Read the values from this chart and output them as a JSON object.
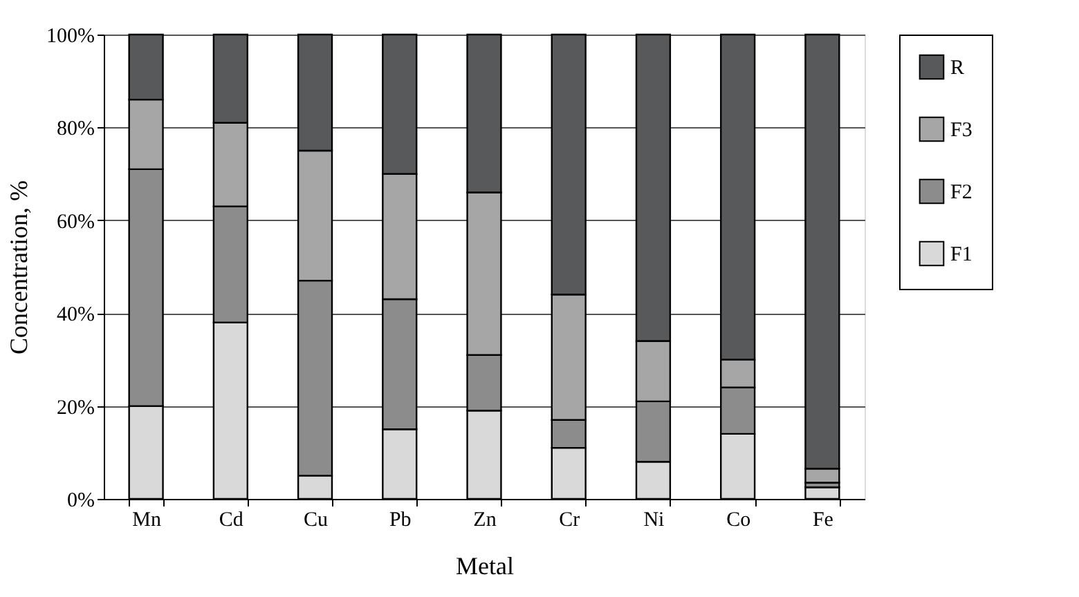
{
  "chart_data": {
    "type": "bar",
    "stacked": true,
    "xlabel": "Metal",
    "ylabel": "Concentration, %",
    "categories": [
      "Mn",
      "Cd",
      "Cu",
      "Pb",
      "Zn",
      "Cr",
      "Ni",
      "Co",
      "Fe"
    ],
    "series": [
      {
        "name": "F1",
        "color": "#d9d9d9",
        "values": [
          20,
          38,
          5,
          15,
          19,
          11,
          8,
          14,
          2.5
        ]
      },
      {
        "name": "F2",
        "color": "#8c8c8c",
        "values": [
          51,
          25,
          42,
          28,
          12,
          6,
          13,
          10,
          1
        ]
      },
      {
        "name": "F3",
        "color": "#a6a6a6",
        "values": [
          15,
          18,
          28,
          27,
          35,
          27,
          13,
          6,
          3
        ]
      },
      {
        "name": "R",
        "color": "#58595b",
        "values": [
          14,
          19,
          25,
          30,
          34,
          56,
          66,
          70,
          93.5
        ]
      }
    ],
    "ylim": [
      0,
      100
    ],
    "yticks": [
      {
        "value": 0,
        "label": "0%"
      },
      {
        "value": 20,
        "label": "20%"
      },
      {
        "value": 40,
        "label": "40%"
      },
      {
        "value": 60,
        "label": "60%"
      },
      {
        "value": 80,
        "label": "80%"
      },
      {
        "value": 100,
        "label": "100%"
      }
    ],
    "grid": "y",
    "legend": "right"
  }
}
